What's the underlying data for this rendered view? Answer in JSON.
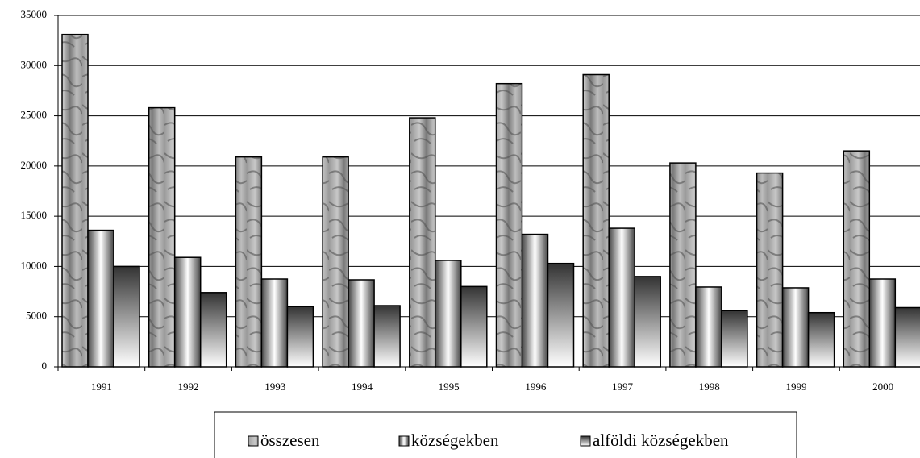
{
  "chart_data": {
    "type": "bar",
    "categories": [
      "1991",
      "1992",
      "1993",
      "1994",
      "1995",
      "1996",
      "1997",
      "1998",
      "1999",
      "2000"
    ],
    "series": [
      {
        "name": "összesen",
        "color": "#9a9a9a",
        "values": [
          33100,
          25800,
          20900,
          20900,
          24800,
          28200,
          29100,
          20300,
          19300,
          21500
        ]
      },
      {
        "name": "községekben",
        "color": "#444444",
        "values": [
          13600,
          10900,
          8750,
          8670,
          10600,
          13200,
          13800,
          7950,
          7870,
          8750
        ]
      },
      {
        "name": "alföldi községekben",
        "color": "#333333",
        "values": [
          10000,
          7400,
          6000,
          6100,
          8000,
          10300,
          9000,
          5600,
          5400,
          5900
        ]
      }
    ],
    "ylim": [
      0,
      35000
    ],
    "yticks": [
      0,
      5000,
      10000,
      15000,
      20000,
      25000,
      30000,
      35000
    ],
    "grid": true
  }
}
